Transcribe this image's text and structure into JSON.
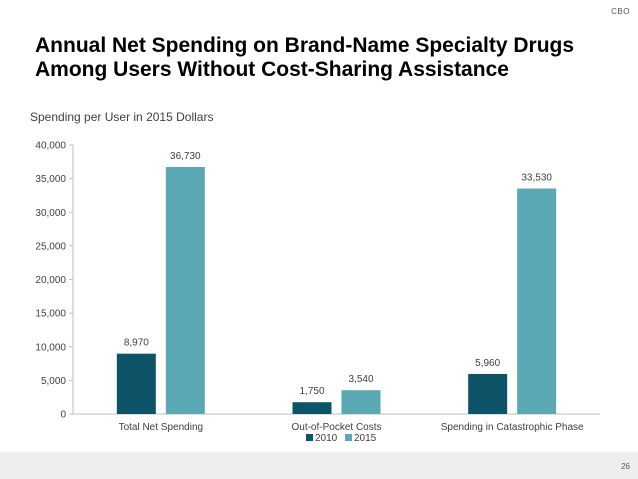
{
  "header": {
    "brand": "CBO"
  },
  "slide": {
    "title": "Annual Net Spending on Brand-Name Specialty Drugs Among Users Without Cost-Sharing Assistance",
    "subtitle": "Spending per User in 2015 Dollars",
    "page_number": "26"
  },
  "chart_data": {
    "type": "bar",
    "categories": [
      "Total Net Spending",
      "Out-of-Pocket Costs",
      "Spending in Catastrophic Phase"
    ],
    "series": [
      {
        "name": "2010",
        "values": [
          8970,
          1750,
          5960
        ],
        "labels": [
          "8,970",
          "1,750",
          "5,960"
        ],
        "color": "#0d5469"
      },
      {
        "name": "2015",
        "values": [
          36730,
          3540,
          33530
        ],
        "labels": [
          "36,730",
          "3,540",
          "33,530"
        ],
        "color": "#5aa8b3"
      }
    ],
    "ylim": [
      0,
      40000
    ],
    "yticks": [
      "0",
      "5,000",
      "10,000",
      "15,000",
      "20,000",
      "25,000",
      "30,000",
      "35,000",
      "40,000"
    ],
    "ytick_values": [
      0,
      5000,
      10000,
      15000,
      20000,
      25000,
      30000,
      35000,
      40000
    ],
    "legend": "bottom",
    "grid": false
  }
}
